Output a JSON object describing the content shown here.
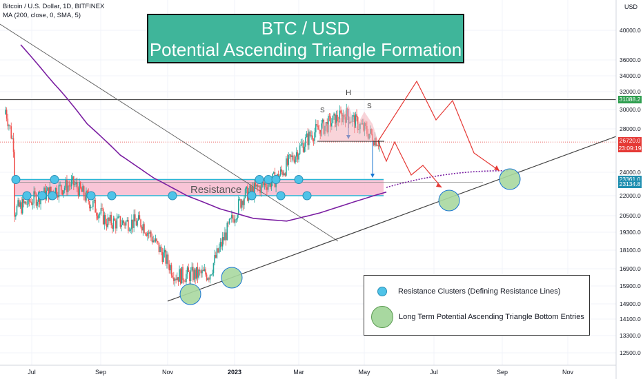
{
  "header": {
    "symbol_line": "Bitcoin / U.S. Dollar, 1D, BITFINEX",
    "indicator_line": "MA (200, close, 0, SMA, 5)"
  },
  "title": {
    "line1": "BTC / USD",
    "line2": "Potential Ascending Triangle Formation"
  },
  "legend": {
    "item1": "Resistance Clusters (Defining Resistance Lines)",
    "item2": "Long Term Potential Ascending Triangle Bottom Entries"
  },
  "annotations": {
    "resistance": "Resistance",
    "head": "H",
    "shoulder_left": "S",
    "shoulder_right": "S"
  },
  "price_axis": {
    "currency": "USD",
    "ticks": [
      "40000.0",
      "36000.0",
      "34000.0",
      "32000.0",
      "30000.0",
      "28000.0",
      "24000.0",
      "22000.0",
      "20500.0",
      "19300.0",
      "18100.0",
      "16900.0",
      "15900.0",
      "14900.0",
      "14100.0",
      "13300.0",
      "12500.0"
    ],
    "tags": [
      {
        "label": "31088.2",
        "color": "#2e9e4f"
      },
      {
        "label": "26720.0",
        "color": "#e53935"
      },
      {
        "label": "23:09:19",
        "color": "#e53935"
      },
      {
        "label": "23361.0",
        "color": "#1f8fb0"
      },
      {
        "label": "23134.8",
        "color": "#1f8fb0"
      }
    ]
  },
  "time_axis": {
    "ticks": [
      "Jul",
      "Sep",
      "Nov",
      "2023",
      "Mar",
      "May",
      "Jul",
      "Sep",
      "Nov"
    ]
  },
  "chart_data": {
    "type": "candlestick",
    "x": [
      "2022-06",
      "2022-07",
      "2022-08",
      "2022-09",
      "2022-10",
      "2022-11",
      "2022-12",
      "2023-01",
      "2023-02",
      "2023-03",
      "2023-04",
      "2023-05"
    ],
    "series": [
      {
        "name": "",
        "values": [
          20500,
          22000,
          23000,
          20000,
          20000,
          16500,
          16600,
          22000,
          23500,
          27500,
          29500,
          26720
        ]
      },
      {
        "name": "MA (200, close, 0, SMA, 5)",
        "values": [
          38000,
          33000,
          28500,
          25500,
          23500,
          22000,
          21000,
          20300,
          20100,
          20700,
          21500,
          22300
        ]
      }
    ],
    "resistance_zone": [
      22000,
      23361
    ],
    "horizontal_levels": [
      31088.2,
      26720.0,
      23361.0,
      23134.8
    ],
    "colors": {
      "up": "#26a69a",
      "down": "#ef5350",
      "ma": "#7b1fa2",
      "projection": "#e53935",
      "zone": "#f8bbd0",
      "zone_edge": "#29b6d6",
      "title_bg": "#3fb59a"
    }
  }
}
